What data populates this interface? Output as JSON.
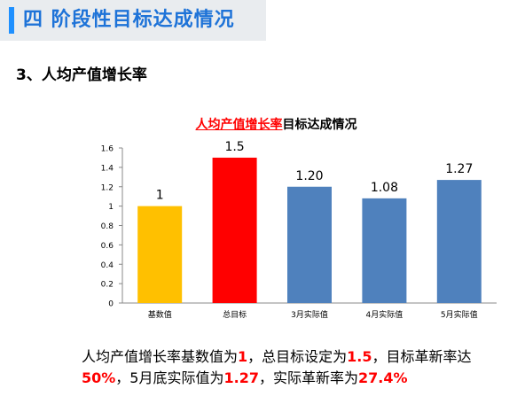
{
  "section": {
    "title": "四 阶段性目标达成情况",
    "accent_color": "#1e90ff",
    "title_color": "#1e73d8"
  },
  "subheading": "3、人均产值增长率",
  "chart_title": {
    "red_part": "人均产值增长率",
    "black_part": "目标达成情况"
  },
  "chart_data": {
    "type": "bar",
    "categories": [
      "基数值",
      "总目标",
      "3月实际值",
      "4月实际值",
      "5月实际值"
    ],
    "values": [
      1,
      1.5,
      1.2,
      1.08,
      1.27
    ],
    "data_labels": [
      "1",
      "1.5",
      "1.20",
      "1.08",
      "1.27"
    ],
    "colors": [
      "#ffc000",
      "#ff0000",
      "#4f81bd",
      "#4f81bd",
      "#4f81bd"
    ],
    "yticks": [
      "0",
      "0.2",
      "0.4",
      "0.6",
      "0.8",
      "1",
      "1.2",
      "1.4",
      "1.6"
    ],
    "ylim": [
      0,
      1.6
    ],
    "grid": false
  },
  "summary": {
    "t1": "人均产值增长率基数值为",
    "v1": "1",
    "t2": "，总目标设定为",
    "v2": "1.5",
    "t3": "，目标革新率达",
    "v3": "50%",
    "t4": "，5月底实际值为",
    "v4": "1.27",
    "t5": "，实际革新率为",
    "v5": "27.4%"
  }
}
